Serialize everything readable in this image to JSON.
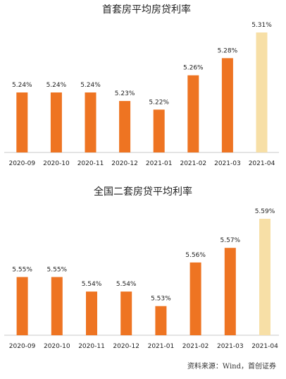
{
  "source_note": "资料来源：Wind，首创证券",
  "colors": {
    "bar": "#EE7422",
    "bar_highlight": "#F7DFA6",
    "axis": "#C8C8C8"
  },
  "chart_data": [
    {
      "type": "bar",
      "title": "首套房平均房贷利率",
      "categories": [
        "2020-09",
        "2020-10",
        "2020-11",
        "2020-12",
        "2021-01",
        "2021-02",
        "2021-03",
        "2021-04"
      ],
      "values": [
        5.24,
        5.24,
        5.24,
        5.23,
        5.22,
        5.26,
        5.28,
        5.31
      ],
      "value_labels": [
        "5.24%",
        "5.24%",
        "5.24%",
        "5.23%",
        "5.22%",
        "5.26%",
        "5.28%",
        "5.31%"
      ],
      "highlight_index": 7,
      "ylim": [
        5.17,
        5.31
      ],
      "grid": false,
      "legend": "none"
    },
    {
      "type": "bar",
      "title": "全国二套房贷平均利率",
      "categories": [
        "2020-09",
        "2020-10",
        "2020-11",
        "2020-12",
        "2021-01",
        "2021-02",
        "2021-03",
        "2021-04"
      ],
      "values": [
        5.55,
        5.55,
        5.54,
        5.54,
        5.53,
        5.56,
        5.57,
        5.59
      ],
      "value_labels": [
        "5.55%",
        "5.55%",
        "5.54%",
        "5.54%",
        "5.53%",
        "5.56%",
        "5.57%",
        "5.59%"
      ],
      "highlight_index": 7,
      "ylim": [
        5.51,
        5.59
      ],
      "grid": false,
      "legend": "none"
    }
  ]
}
